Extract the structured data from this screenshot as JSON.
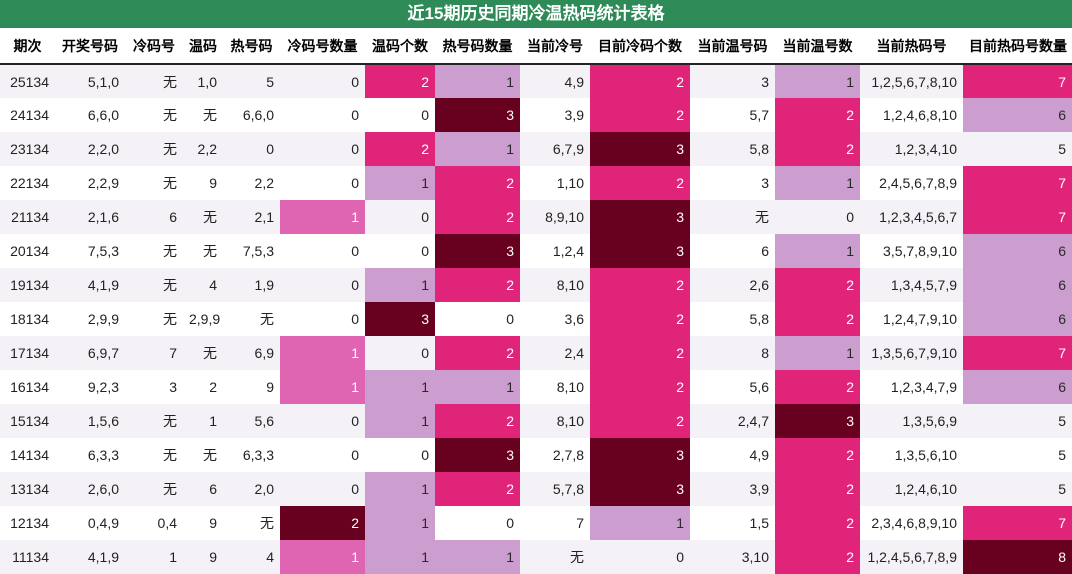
{
  "title": "近15期历史同期冷温热码统计表格",
  "headers": [
    "期次",
    "开奖号码",
    "冷码号",
    "温码",
    "热号码",
    "冷码号数量",
    "温码个数",
    "热号码数量",
    "当前冷号",
    "目前冷码个数",
    "当前温号码",
    "当前温号数",
    "当前热码号",
    "目前热码号数量"
  ],
  "rows": [
    [
      "25134",
      "5,1,0",
      "无",
      "1,0",
      "5",
      "0",
      "2",
      "1",
      "4,9",
      "2",
      "3",
      "1",
      "1,2,5,6,7,8,10",
      "7"
    ],
    [
      "24134",
      "6,6,0",
      "无",
      "无",
      "6,6,0",
      "0",
      "0",
      "3",
      "3,9",
      "2",
      "5,7",
      "2",
      "1,2,4,6,8,10",
      "6"
    ],
    [
      "23134",
      "2,2,0",
      "无",
      "2,2",
      "0",
      "0",
      "2",
      "1",
      "6,7,9",
      "3",
      "5,8",
      "2",
      "1,2,3,4,10",
      "5"
    ],
    [
      "22134",
      "2,2,9",
      "无",
      "9",
      "2,2",
      "0",
      "1",
      "2",
      "1,10",
      "2",
      "3",
      "1",
      "2,4,5,6,7,8,9",
      "7"
    ],
    [
      "21134",
      "2,1,6",
      "6",
      "无",
      "2,1",
      "1",
      "0",
      "2",
      "8,9,10",
      "3",
      "无",
      "0",
      "1,2,3,4,5,6,7",
      "7"
    ],
    [
      "20134",
      "7,5,3",
      "无",
      "无",
      "7,5,3",
      "0",
      "0",
      "3",
      "1,2,4",
      "3",
      "6",
      "1",
      "3,5,7,8,9,10",
      "6"
    ],
    [
      "19134",
      "4,1,9",
      "无",
      "4",
      "1,9",
      "0",
      "1",
      "2",
      "8,10",
      "2",
      "2,6",
      "2",
      "1,3,4,5,7,9",
      "6"
    ],
    [
      "18134",
      "2,9,9",
      "无",
      "2,9,9",
      "无",
      "0",
      "3",
      "0",
      "3,6",
      "2",
      "5,8",
      "2",
      "1,2,4,7,9,10",
      "6"
    ],
    [
      "17134",
      "6,9,7",
      "7",
      "无",
      "6,9",
      "1",
      "0",
      "2",
      "2,4",
      "2",
      "8",
      "1",
      "1,3,5,6,7,9,10",
      "7"
    ],
    [
      "16134",
      "9,2,3",
      "3",
      "2",
      "9",
      "1",
      "1",
      "1",
      "8,10",
      "2",
      "5,6",
      "2",
      "1,2,3,4,7,9",
      "6"
    ],
    [
      "15134",
      "1,5,6",
      "无",
      "1",
      "5,6",
      "0",
      "1",
      "2",
      "8,10",
      "2",
      "2,4,7",
      "3",
      "1,3,5,6,9",
      "5"
    ],
    [
      "14134",
      "6,3,3",
      "无",
      "无",
      "6,3,3",
      "0",
      "0",
      "3",
      "2,7,8",
      "3",
      "4,9",
      "2",
      "1,3,5,6,10",
      "5"
    ],
    [
      "13134",
      "2,6,0",
      "无",
      "6",
      "2,0",
      "0",
      "1",
      "2",
      "5,7,8",
      "3",
      "3,9",
      "2",
      "1,2,4,6,10",
      "5"
    ],
    [
      "12134",
      "0,4,9",
      "0,4",
      "9",
      "无",
      "2",
      "1",
      "0",
      "7",
      "1",
      "1,5",
      "2",
      "2,3,4,6,8,9,10",
      "7"
    ],
    [
      "11134",
      "4,1,9",
      "1",
      "9",
      "4",
      "1",
      "1",
      "1",
      "无",
      "0",
      "3,10",
      "2",
      "1,2,4,5,6,7,8,9",
      "8"
    ]
  ]
}
